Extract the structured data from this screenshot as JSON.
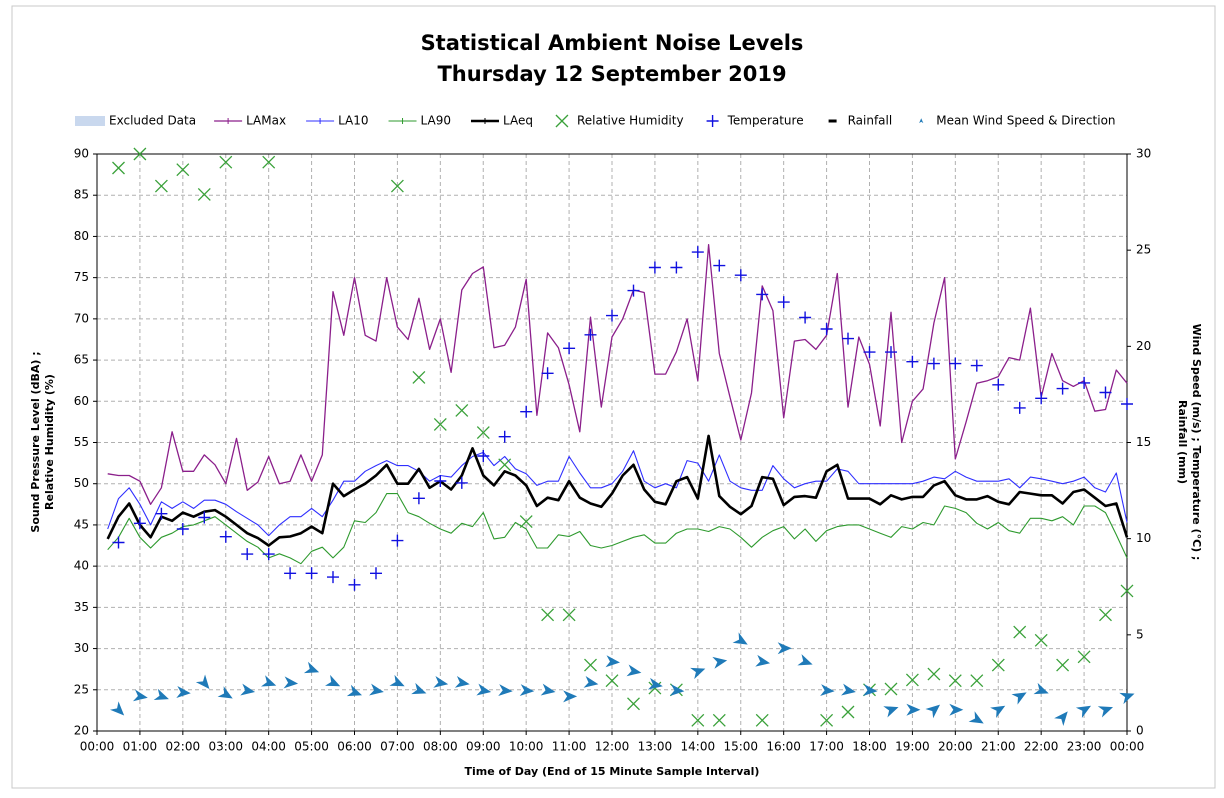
{
  "chart_data": {
    "type": "line",
    "title": "Statistical Ambient Noise Levels",
    "subtitle": "Thursday 12 September 2019",
    "x_label": "Time of Day (End of 15 Minute Sample Interval)",
    "y_label": [
      "Sound Pressure Level (dBA) ;",
      "Relative Humidity (%)"
    ],
    "y2_label": [
      "Wind Speed (m/s) ; Temperature (°C) ;",
      "Rainfall (mm)"
    ],
    "grid": true,
    "xlim": [
      0,
      24
    ],
    "xticks": [
      {
        "value": 0,
        "label": "00:00"
      },
      {
        "value": 1,
        "label": "01:00"
      },
      {
        "value": 2,
        "label": "02:00"
      },
      {
        "value": 3,
        "label": "03:00"
      },
      {
        "value": 4,
        "label": "04:00"
      },
      {
        "value": 5,
        "label": "05:00"
      },
      {
        "value": 6,
        "label": "06:00"
      },
      {
        "value": 7,
        "label": "07:00"
      },
      {
        "value": 8,
        "label": "08:00"
      },
      {
        "value": 9,
        "label": "09:00"
      },
      {
        "value": 10,
        "label": "10:00"
      },
      {
        "value": 11,
        "label": "11:00"
      },
      {
        "value": 12,
        "label": "12:00"
      },
      {
        "value": 13,
        "label": "13:00"
      },
      {
        "value": 14,
        "label": "14:00"
      },
      {
        "value": 15,
        "label": "15:00"
      },
      {
        "value": 16,
        "label": "16:00"
      },
      {
        "value": 17,
        "label": "17:00"
      },
      {
        "value": 18,
        "label": "18:00"
      },
      {
        "value": 19,
        "label": "19:00"
      },
      {
        "value": 20,
        "label": "20:00"
      },
      {
        "value": 21,
        "label": "21:00"
      },
      {
        "value": 22,
        "label": "22:00"
      },
      {
        "value": 23,
        "label": "23:00"
      },
      {
        "value": 24,
        "label": "00:00"
      }
    ],
    "ylim": [
      20,
      90
    ],
    "yticks": [
      20,
      25,
      30,
      35,
      40,
      45,
      50,
      55,
      60,
      65,
      70,
      75,
      80,
      85,
      90
    ],
    "y2lim": [
      0,
      30
    ],
    "y2ticks": [
      0,
      5,
      10,
      15,
      20,
      25,
      30
    ],
    "excluded": {
      "name": "Excluded Data",
      "color": "#c9d8ee"
    },
    "x": [
      0.25,
      0.5,
      0.75,
      1,
      1.25,
      1.5,
      1.75,
      2,
      2.25,
      2.5,
      2.75,
      3,
      3.25,
      3.5,
      3.75,
      4,
      4.25,
      4.5,
      4.75,
      5,
      5.25,
      5.5,
      5.75,
      6,
      6.25,
      6.5,
      6.75,
      7,
      7.25,
      7.5,
      7.75,
      8,
      8.25,
      8.5,
      8.75,
      9,
      9.25,
      9.5,
      9.75,
      10,
      10.25,
      10.5,
      10.75,
      11,
      11.25,
      11.5,
      11.75,
      12,
      12.25,
      12.5,
      12.75,
      13,
      13.25,
      13.5,
      13.75,
      14,
      14.25,
      14.5,
      14.75,
      15,
      15.25,
      15.5,
      15.75,
      16,
      16.25,
      16.5,
      16.75,
      17,
      17.25,
      17.5,
      17.75,
      18,
      18.25,
      18.5,
      18.75,
      19,
      19.25,
      19.5,
      19.75,
      20,
      20.25,
      20.5,
      20.75,
      21,
      21.25,
      21.5,
      21.75,
      22,
      22.25,
      22.5,
      22.75,
      23,
      23.25,
      23.5,
      23.75,
      24
    ],
    "series": [
      {
        "name": "LAMax",
        "type": "line",
        "color": "#8b1f8b",
        "width": 1.3,
        "values": [
          51.2,
          51.0,
          51.0,
          50.3,
          47.5,
          49.5,
          56.3,
          51.5,
          51.5,
          53.5,
          52.3,
          50.0,
          55.5,
          49.2,
          50.2,
          53.3,
          50.0,
          50.3,
          53.5,
          50.3,
          53.5,
          73.3,
          68.0,
          75.0,
          68.0,
          67.3,
          75.0,
          69.0,
          67.5,
          72.5,
          66.3,
          70.0,
          63.5,
          73.5,
          75.5,
          76.3,
          66.5,
          66.8,
          69.0,
          74.8,
          58.3,
          68.3,
          66.5,
          62.0,
          56.3,
          70.2,
          59.3,
          67.8,
          70.0,
          73.5,
          73.2,
          63.3,
          63.3,
          66.0,
          70.0,
          62.5,
          79.0,
          65.8,
          60.5,
          55.3,
          61.0,
          74.0,
          71.0,
          58.0,
          67.3,
          67.5,
          66.3,
          68.0,
          75.5,
          59.3,
          67.8,
          64.5,
          57.0,
          70.8,
          55.0,
          60.0,
          61.5,
          69.5,
          75.0,
          53.0,
          57.5,
          62.2,
          62.5,
          63.0,
          65.3,
          65.0,
          71.3,
          60.5,
          65.8,
          62.5,
          61.8,
          62.5,
          58.8,
          59.0,
          63.8,
          62.2
        ]
      },
      {
        "name": "LA10",
        "type": "line",
        "color": "#2f2fff",
        "width": 1.1,
        "values": [
          44.5,
          48.2,
          49.5,
          47.5,
          45.0,
          47.8,
          47.0,
          47.8,
          47.0,
          48.0,
          48.0,
          47.5,
          46.6,
          45.8,
          45.0,
          43.7,
          45.0,
          46.0,
          46.0,
          47.0,
          46.0,
          48.0,
          50.3,
          50.3,
          51.5,
          52.2,
          52.8,
          52.2,
          52.2,
          51.5,
          50.3,
          51.0,
          50.8,
          52.2,
          53.3,
          53.8,
          52.2,
          53.3,
          51.8,
          51.2,
          49.8,
          50.3,
          50.3,
          53.3,
          51.3,
          49.5,
          49.5,
          50.0,
          51.5,
          54.0,
          50.3,
          49.5,
          50.0,
          49.5,
          52.8,
          52.5,
          50.3,
          53.5,
          50.3,
          49.5,
          49.2,
          49.2,
          52.2,
          50.6,
          49.5,
          50.0,
          50.3,
          50.3,
          51.8,
          51.5,
          50.0,
          50.0,
          50.0,
          50.0,
          50.0,
          50.0,
          50.3,
          50.8,
          50.6,
          51.5,
          50.8,
          50.3,
          50.3,
          50.3,
          50.6,
          49.5,
          50.8,
          50.6,
          50.3,
          50.0,
          50.3,
          50.8,
          49.5,
          49.0,
          51.3,
          45.3
        ]
      },
      {
        "name": "LA90",
        "type": "line",
        "color": "#2e9a2e",
        "width": 1.1,
        "values": [
          42.0,
          43.5,
          45.8,
          43.5,
          42.2,
          43.5,
          44.0,
          44.8,
          45.0,
          45.5,
          46.0,
          45.0,
          44.0,
          43.0,
          42.3,
          41.0,
          41.5,
          41.0,
          40.3,
          41.8,
          42.3,
          41.0,
          42.3,
          45.5,
          45.3,
          46.5,
          48.8,
          48.8,
          46.5,
          46.0,
          45.2,
          44.5,
          44.0,
          45.2,
          44.8,
          46.5,
          43.3,
          43.5,
          45.3,
          44.5,
          42.2,
          42.2,
          43.8,
          43.6,
          44.2,
          42.5,
          42.2,
          42.5,
          43.0,
          43.5,
          43.8,
          42.8,
          42.8,
          44.0,
          44.5,
          44.5,
          44.2,
          44.8,
          44.5,
          43.5,
          42.3,
          43.5,
          44.3,
          44.8,
          43.3,
          44.5,
          43.0,
          44.3,
          44.8,
          45.0,
          45.0,
          44.5,
          44.0,
          43.5,
          44.8,
          44.5,
          45.3,
          45.0,
          47.3,
          47.0,
          46.5,
          45.2,
          44.5,
          45.3,
          44.3,
          44.0,
          45.8,
          45.8,
          45.5,
          46.0,
          45.0,
          47.3,
          47.3,
          46.5,
          43.8,
          41.0
        ]
      },
      {
        "name": "LAeq",
        "type": "line",
        "color": "#000000",
        "width": 2.6,
        "values": [
          43.3,
          46.0,
          47.6,
          45.0,
          43.5,
          46.0,
          45.5,
          46.5,
          46.0,
          46.6,
          46.8,
          46.0,
          45.0,
          44.0,
          43.4,
          42.5,
          43.5,
          43.6,
          44.0,
          44.8,
          44.0,
          50.0,
          48.5,
          49.3,
          50.0,
          51.0,
          52.3,
          50.0,
          50.0,
          51.8,
          49.5,
          50.3,
          49.3,
          51.0,
          54.3,
          51.0,
          49.8,
          51.5,
          51.0,
          49.8,
          47.3,
          48.3,
          48.0,
          50.3,
          48.3,
          47.6,
          47.2,
          48.8,
          51.0,
          52.3,
          49.3,
          47.8,
          47.5,
          50.3,
          50.8,
          48.2,
          55.8,
          48.5,
          47.2,
          46.3,
          47.3,
          50.8,
          50.6,
          47.4,
          48.4,
          48.5,
          48.3,
          51.5,
          52.3,
          48.2,
          48.2,
          48.2,
          47.5,
          48.6,
          48.1,
          48.4,
          48.4,
          49.8,
          50.3,
          48.6,
          48.1,
          48.1,
          48.5,
          47.8,
          47.5,
          49.0,
          48.8,
          48.6,
          48.6,
          47.6,
          49.0,
          49.3,
          48.3,
          47.3,
          47.6,
          43.5
        ]
      },
      {
        "name": "Relative Humidity",
        "type": "scatter",
        "marker": "x",
        "color": "#3aa13a",
        "x": [
          0.5,
          1,
          1.5,
          2,
          2.5,
          3,
          4,
          7,
          7.5,
          8,
          8.5,
          9,
          9.5,
          10,
          10.5,
          11,
          11.5,
          12,
          12.5,
          13,
          13.5,
          14,
          14.5,
          15.5,
          17,
          17.5,
          18,
          18.5,
          19,
          19.5,
          20,
          20.5,
          21,
          21.5,
          22,
          22.5,
          23,
          23.5,
          24
        ],
        "values": [
          88.3,
          90,
          86.1,
          88.1,
          85.1,
          89,
          89,
          86.1,
          62.9,
          57.2,
          58.9,
          56.2,
          52.3,
          45.4,
          34.1,
          34.1,
          28,
          26.1,
          23.3,
          25.2,
          25,
          21.3,
          21.3,
          21.3,
          21.3,
          22.3,
          25,
          25.1,
          26.2,
          26.9,
          26.1,
          26.1,
          28,
          32,
          31,
          28,
          29,
          34.1,
          37
        ]
      },
      {
        "name": "Temperature",
        "type": "scatter",
        "marker": "+",
        "color": "#1010e0",
        "axis": "y2",
        "x": [
          0.5,
          1,
          1.5,
          2,
          2.5,
          3,
          3.5,
          4,
          4.5,
          5,
          5.5,
          6,
          6.5,
          7,
          7.5,
          8,
          8.5,
          9,
          9.5,
          10,
          10.5,
          11,
          11.5,
          12,
          12.5,
          13,
          13.5,
          14,
          14.5,
          15,
          15.5,
          16,
          16.5,
          17,
          17.5,
          18,
          18.5,
          19,
          19.5,
          20,
          20.5,
          21,
          21.5,
          22,
          22.5,
          23,
          23.5,
          24
        ],
        "values": [
          9.8,
          10.8,
          11.3,
          10.5,
          11.1,
          10.1,
          9.2,
          9.2,
          8.2,
          8.2,
          8.0,
          7.6,
          8.2,
          9.9,
          12.1,
          13.0,
          12.9,
          14.3,
          15.3,
          16.6,
          18.6,
          19.9,
          20.6,
          21.6,
          22.9,
          24.1,
          24.1,
          24.9,
          24.2,
          23.7,
          22.7,
          22.3,
          21.5,
          20.9,
          20.4,
          19.7,
          19.7,
          19.2,
          19.1,
          19.1,
          19.0,
          18.0,
          16.8,
          17.3,
          17.8,
          18.1,
          17.6,
          17.0
        ]
      },
      {
        "name": "Rainfall",
        "type": "scatter",
        "marker": "dash",
        "color": "#000000",
        "axis": "y2",
        "x": [],
        "values": []
      },
      {
        "name": "Mean Wind Speed & Direction",
        "type": "scatter",
        "marker": "arrow",
        "color": "#1f7ab8",
        "axis": "y2",
        "x": [
          0.5,
          1,
          1.5,
          2,
          2.5,
          3,
          3.5,
          4,
          4.5,
          5,
          5.5,
          6,
          6.5,
          7,
          7.5,
          8,
          8.5,
          9,
          9.5,
          10,
          10.5,
          11,
          11.5,
          12,
          12.5,
          13,
          13.5,
          14,
          14.5,
          15,
          15.5,
          16,
          16.5,
          17,
          17.5,
          18,
          18.5,
          19,
          19.5,
          20,
          20.5,
          21,
          21.5,
          22,
          22.5,
          23,
          23.5,
          24
        ],
        "values": [
          1.1,
          1.8,
          1.8,
          2.0,
          2.5,
          1.9,
          2.1,
          2.5,
          2.5,
          3.2,
          2.5,
          2.0,
          2.1,
          2.5,
          2.1,
          2.5,
          2.5,
          2.1,
          2.1,
          2.1,
          2.1,
          1.8,
          2.5,
          3.6,
          3.1,
          2.4,
          2.1,
          3.1,
          3.6,
          4.7,
          3.6,
          4.3,
          3.6,
          2.1,
          2.1,
          2.1,
          1.1,
          1.1,
          1.1,
          1.1,
          0.6,
          1.1,
          1.8,
          2.1,
          0.7,
          1.1,
          1.1,
          1.8
        ],
        "directions": [
          135,
          100,
          110,
          95,
          140,
          120,
          100,
          110,
          95,
          110,
          115,
          110,
          100,
          115,
          110,
          100,
          100,
          100,
          95,
          95,
          100,
          90,
          100,
          95,
          100,
          100,
          95,
          70,
          80,
          120,
          100,
          90,
          110,
          95,
          100,
          95,
          70,
          90,
          50,
          90,
          120,
          60,
          60,
          110,
          40,
          60,
          70,
          70
        ]
      }
    ]
  }
}
